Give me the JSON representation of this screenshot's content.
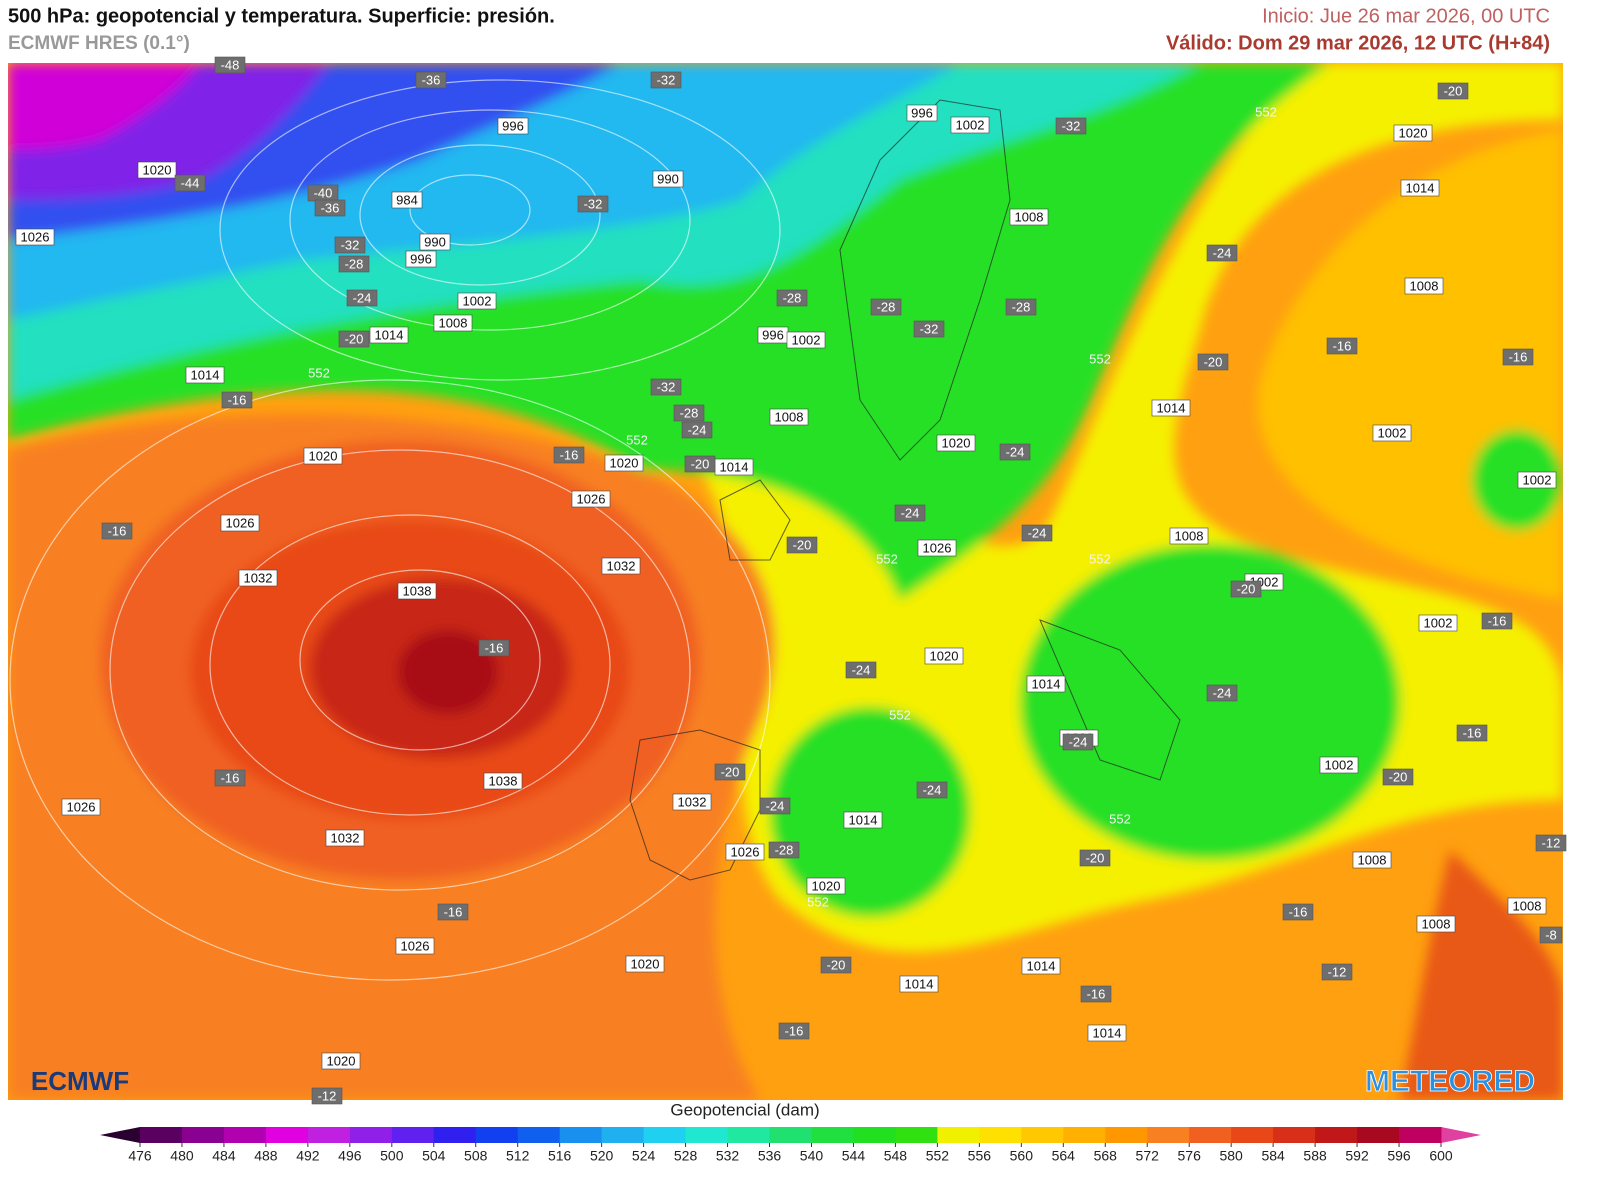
{
  "header": {
    "title": "500 hPa: geopotencial y temperatura. Superficie: presión.",
    "model": "ECMWF HRES (0.1°)",
    "start": "Inicio: Jue 26 mar 2026, 00 UTC",
    "valid": "Válido: Dom 29 mar 2026, 12 UTC (H+84)"
  },
  "map": {
    "pressure_labels": [
      "1020",
      "1026",
      "996",
      "990",
      "984",
      "990",
      "996",
      "1002",
      "1008",
      "1014",
      "1014",
      "1020",
      "1026",
      "1032",
      "1038",
      "1020",
      "1026",
      "1032",
      "1038",
      "1032",
      "1026",
      "1026",
      "1020",
      "1020",
      "1032",
      "1026",
      "1020",
      "1014",
      "1014",
      "1014",
      "1014",
      "1020",
      "1014",
      "1008",
      "1002",
      "1008",
      "1008",
      "1008",
      "1002",
      "1002",
      "1008",
      "1026",
      "1020",
      "1008",
      "1014",
      "996",
      "1002",
      "1008",
      "996",
      "1002",
      "1020",
      "1014",
      "1008",
      "1002",
      "1002",
      "1014"
    ],
    "temperature_labels": [
      "-48",
      "-36",
      "-32",
      "-44",
      "-40",
      "-36",
      "-32",
      "-32",
      "-28",
      "-24",
      "-20",
      "-16",
      "-32",
      "-28",
      "-24",
      "-20",
      "-16",
      "-16",
      "-16",
      "-16",
      "-16",
      "-28",
      "-28",
      "-32",
      "-28",
      "-32",
      "-24",
      "-20",
      "-20",
      "-16",
      "-16",
      "-24",
      "-24",
      "-20",
      "-24",
      "-24",
      "-20",
      "-24",
      "-24",
      "-20",
      "-24",
      "-28",
      "-24",
      "-20",
      "-20",
      "-16",
      "-16",
      "-12",
      "-16",
      "-20",
      "-16",
      "-16",
      "-12",
      "-8",
      "-12"
    ],
    "contour_labels": [
      "552",
      "552",
      "552",
      "552",
      "552",
      "552",
      "552",
      "552",
      "552"
    ]
  },
  "colorbar": {
    "label": "Geopotencial (dam)",
    "ticks": [
      476,
      480,
      484,
      488,
      492,
      496,
      500,
      504,
      508,
      512,
      516,
      520,
      524,
      528,
      532,
      536,
      540,
      544,
      548,
      552,
      556,
      560,
      564,
      568,
      572,
      576,
      580,
      584,
      588,
      592,
      596,
      600
    ],
    "colors": [
      "#5a0060",
      "#8a0090",
      "#b000b0",
      "#e000e0",
      "#c020e0",
      "#9020e8",
      "#6020f0",
      "#3020f0",
      "#1040f0",
      "#1060f0",
      "#1890f0",
      "#20b0f0",
      "#20d0f0",
      "#20e8d0",
      "#20e8a0",
      "#20e070",
      "#20e040",
      "#20e020",
      "#30e010",
      "#f0f000",
      "#ffe000",
      "#ffc800",
      "#ffb000",
      "#ff9800",
      "#f88020",
      "#f06020",
      "#e84818",
      "#d83018",
      "#c01818",
      "#a80820",
      "#c00060"
    ],
    "under_color": "#2a0030",
    "over_color": "#e040a0"
  },
  "logos": {
    "left": "ECMWF",
    "right": "METEORED"
  }
}
